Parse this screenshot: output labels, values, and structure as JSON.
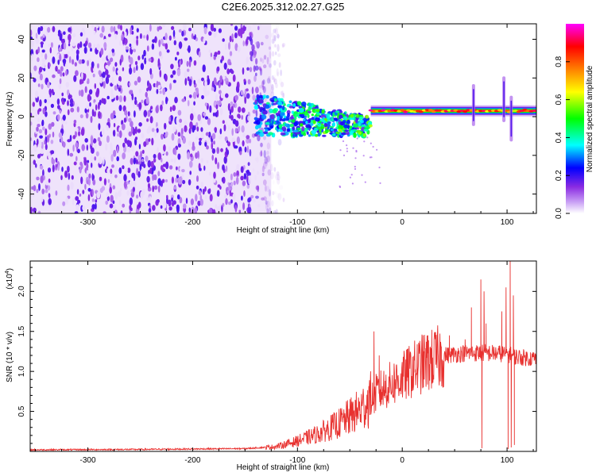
{
  "title": "C2E6.2025.312.02.27.G25",
  "chart_data": [
    {
      "type": "heatmap",
      "name": "spectrogram",
      "xlabel": "Height of straight line (km)",
      "ylabel": "Frequency (Hz)",
      "xlim": [
        -355,
        128
      ],
      "ylim": [
        -50,
        48
      ],
      "xticks": [
        -300,
        -200,
        -100,
        0,
        100
      ],
      "yticks": [
        -40,
        -20,
        0,
        20,
        40
      ],
      "x_tick_labels": [
        "-300",
        "-200",
        "-100",
        "0",
        "100"
      ],
      "y_tick_labels": [
        "-40",
        "-20",
        "0",
        "20",
        "40"
      ],
      "colorbar": {
        "label": "Normalized spectral amplitude",
        "range": [
          0,
          1
        ],
        "ticks": [
          0.0,
          0.2,
          0.4,
          0.6,
          0.8
        ],
        "tick_labels": [
          "0.0",
          "0.2",
          "0.4",
          "0.6",
          "0.8"
        ],
        "colors": [
          "#ffffff",
          "#8a2be2",
          "#0000ff",
          "#00ffff",
          "#00ff00",
          "#ffff00",
          "#ff8000",
          "#ff0000",
          "#ff00ff"
        ]
      },
      "features": [
        {
          "region": "noise",
          "x_range": [
            -355,
            -125
          ],
          "y_range": [
            -50,
            48
          ],
          "amplitude": 0.1
        },
        {
          "region": "transition",
          "x_range": [
            -140,
            -30
          ],
          "y_center": 0,
          "amplitude": 0.45
        },
        {
          "region": "signal_line",
          "x_range": [
            -30,
            128
          ],
          "y_center": 3,
          "amplitude": 0.95
        },
        {
          "region": "spike",
          "x": 68,
          "y_range": [
            -4,
            16
          ]
        },
        {
          "region": "spike",
          "x": 97,
          "y_range": [
            -2,
            20
          ]
        },
        {
          "region": "spike",
          "x": 104,
          "y_range": [
            -12,
            10
          ]
        }
      ]
    },
    {
      "type": "line",
      "name": "snr",
      "xlabel": "Height of straight line (km)",
      "ylabel": "SNR (10 * v/v)",
      "multiplier_label": "(x10",
      "multiplier_exp": "4",
      "multiplier_close": ")",
      "xlim": [
        -355,
        128
      ],
      "ylim": [
        0,
        23800
      ],
      "xticks": [
        -300,
        -200,
        -100,
        0,
        100
      ],
      "yticks": [
        5000,
        10000,
        15000,
        20000
      ],
      "x_tick_labels": [
        "-300",
        "-200",
        "-100",
        "0",
        "100"
      ],
      "y_tick_labels": [
        "0.5",
        "1.0",
        "1.5",
        "2.0"
      ],
      "color": "#e8312f",
      "anchors": [
        [
          -355,
          200
        ],
        [
          -250,
          250
        ],
        [
          -200,
          300
        ],
        [
          -150,
          350
        ],
        [
          -120,
          600
        ],
        [
          -100,
          1300
        ],
        [
          -80,
          2200
        ],
        [
          -60,
          3500
        ],
        [
          -40,
          5200
        ],
        [
          -25,
          7200
        ],
        [
          -10,
          8500
        ],
        [
          0,
          9200
        ],
        [
          10,
          10200
        ],
        [
          20,
          11000
        ],
        [
          40,
          12000
        ],
        [
          60,
          12300
        ],
        [
          80,
          12300
        ],
        [
          100,
          12200
        ],
        [
          110,
          11800
        ],
        [
          128,
          11600
        ]
      ],
      "spikes": [
        [
          -27,
          15000
        ],
        [
          -22,
          12000
        ],
        [
          -12,
          10500
        ],
        [
          45,
          14500
        ],
        [
          60,
          14000
        ],
        [
          63,
          12500
        ],
        [
          66,
          18000
        ],
        [
          75,
          21500
        ],
        [
          76,
          400
        ],
        [
          78,
          20000
        ],
        [
          80,
          16000
        ],
        [
          95,
          17500
        ],
        [
          99,
          20500
        ],
        [
          101,
          300
        ],
        [
          103,
          24000
        ],
        [
          104,
          500
        ],
        [
          106,
          19500
        ],
        [
          107,
          800
        ]
      ]
    }
  ]
}
